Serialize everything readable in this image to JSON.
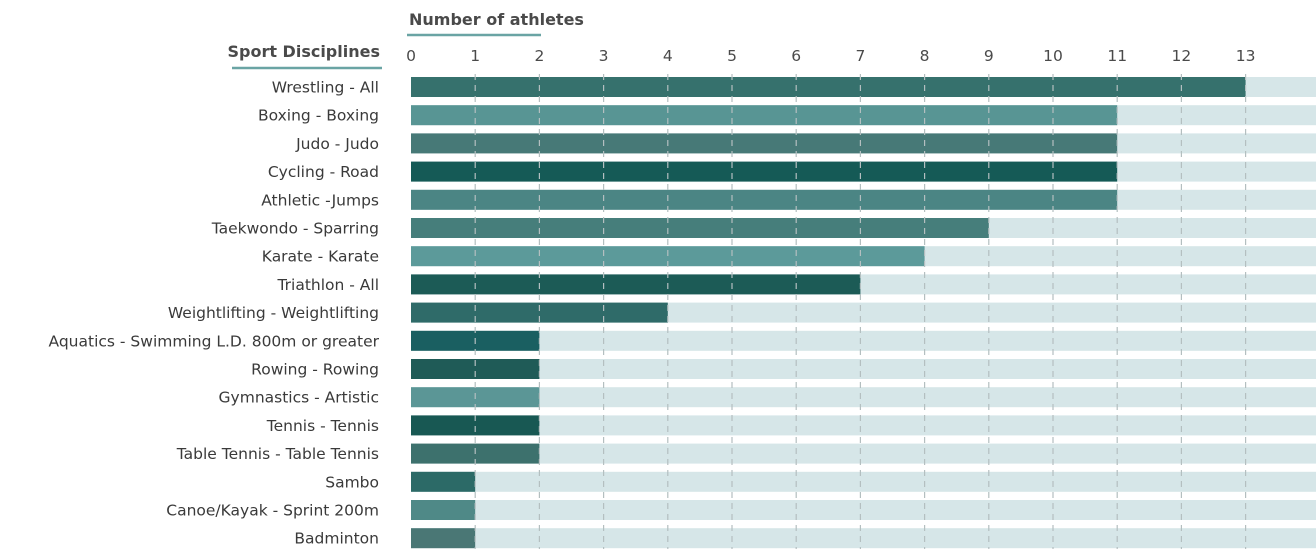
{
  "chart_data": {
    "type": "bar",
    "orientation": "horizontal",
    "xlabel": "Number of athletes",
    "ylabel": "Sport Disciplines",
    "xlim": [
      0,
      14.2
    ],
    "xticks": [
      0,
      1,
      2,
      3,
      4,
      5,
      6,
      7,
      8,
      9,
      10,
      11,
      12,
      13
    ],
    "grid": true,
    "categories": [
      "Wrestling - All",
      "Boxing - Boxing",
      "Judo - Judo",
      "Cycling - Road",
      "Athletic -Jumps",
      "Taekwondo - Sparring",
      "Karate - Karate",
      "Triathlon - All",
      "Weightlifting - Weightlifting",
      "Aquatics - Swimming L.D. 800m or greater",
      "Rowing - Rowing",
      "Gymnastics - Artistic",
      "Tennis - Tennis",
      "Table Tennis - Table Tennis",
      "Sambo",
      "Canoe/Kayak - Sprint 200m",
      "Badminton"
    ],
    "values": [
      13,
      11,
      11,
      11,
      11,
      9,
      8,
      7,
      4,
      2,
      2,
      2,
      2,
      2,
      1,
      1,
      1
    ],
    "colors": [
      "#36716d",
      "#589594",
      "#477977",
      "#155a56",
      "#4b8584",
      "#467e7b",
      "#5c9a9a",
      "#1c5b56",
      "#2f6b69",
      "#1a5f61",
      "#1f5b57",
      "#5b9696",
      "#185853",
      "#3d716d",
      "#2c6a67",
      "#4f8987",
      "#4a7775"
    ],
    "track_color": "#d6e6e8",
    "grid_color": "#b4bfc0",
    "underline_color": "#6aa4a4"
  }
}
